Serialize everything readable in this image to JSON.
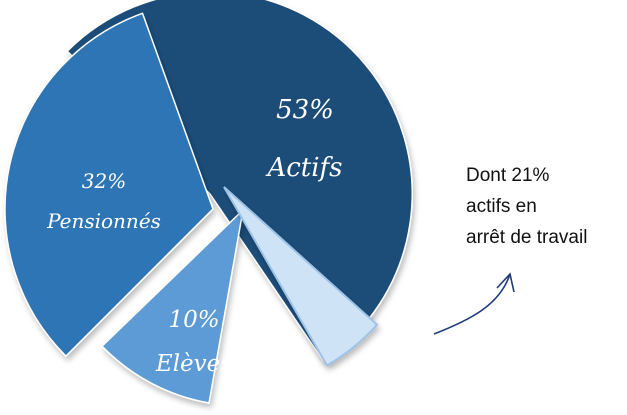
{
  "chart_data": {
    "type": "pie",
    "series": [
      {
        "label": "Actifs",
        "value": 53,
        "text_value": "53%",
        "color": "#1f4e79"
      },
      {
        "label": "Pensionnés",
        "value": 32,
        "text_value": "32%",
        "color": "#2e75b6"
      },
      {
        "label": "Elèves",
        "value": 10,
        "text_value": "10%",
        "color": "#5b9bd5"
      },
      {
        "label": "",
        "value": 5,
        "text_value": "",
        "color": "#cfe3f7"
      }
    ],
    "annotation": {
      "lines": [
        "Dont 21%",
        "actifs en",
        "arrêt de travail"
      ],
      "arrow_color": "#1f3a7a"
    }
  }
}
